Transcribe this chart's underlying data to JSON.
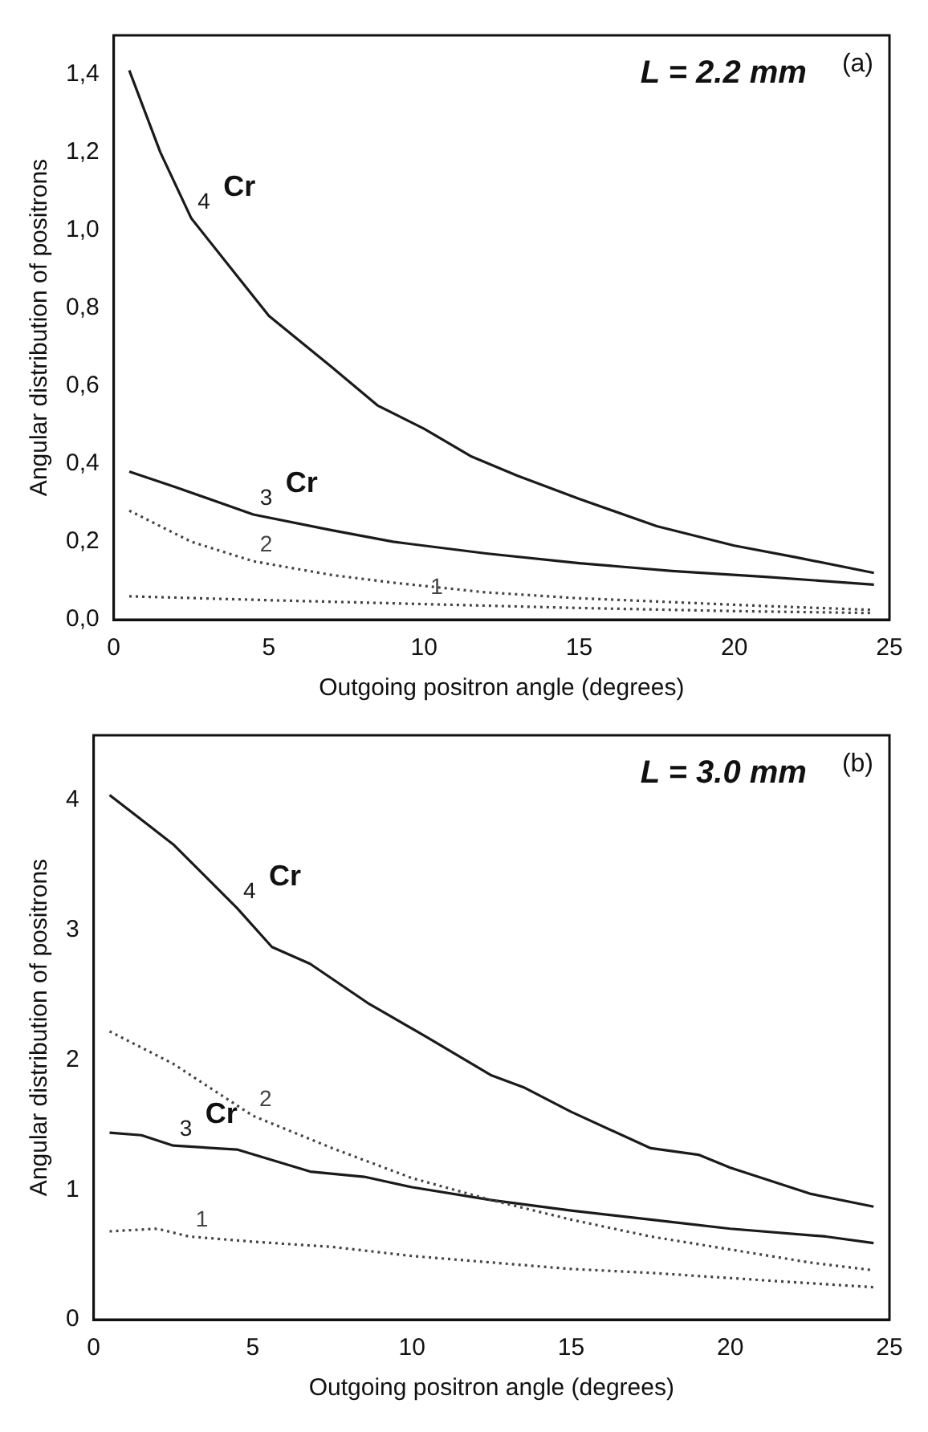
{
  "chart_data": [
    {
      "type": "line",
      "xlabel": "Outgoing positron angle (degrees)",
      "ylabel": "Angular distribution of positrons",
      "xlim": [
        0,
        25
      ],
      "xticks": [
        0,
        5,
        10,
        15,
        20,
        25
      ],
      "ylim": [
        0,
        1.5
      ],
      "yticks": [
        {
          "value": 0,
          "label": "0,0"
        },
        {
          "value": 0.2,
          "label": "0,2"
        },
        {
          "value": 0.4,
          "label": "0,4"
        },
        {
          "value": 0.6,
          "label": "0,6"
        },
        {
          "value": 0.8,
          "label": "0,8"
        },
        {
          "value": 1,
          "label": "1,0"
        },
        {
          "value": 1.2,
          "label": "1,2"
        },
        {
          "value": 1.4,
          "label": "1,4"
        }
      ],
      "grid": false,
      "legend": false,
      "marker": "none",
      "annotations": [
        "L = 2.2 mm",
        "(a)",
        "Cr",
        "Cr"
      ],
      "series": [
        {
          "name": "1",
          "color": "#444444",
          "line_style": "dotted",
          "x": [
            0.5,
            5,
            10,
            15,
            20,
            24.5
          ],
          "values": [
            0.06,
            0.05,
            0.04,
            0.03,
            0.022,
            0.017
          ]
        },
        {
          "name": "2",
          "color": "#444444",
          "line_style": "dotted",
          "x": [
            0.5,
            2.5,
            4.5,
            7,
            9,
            12,
            15,
            18,
            21,
            24.5
          ],
          "values": [
            0.28,
            0.2,
            0.15,
            0.115,
            0.095,
            0.07,
            0.055,
            0.045,
            0.035,
            0.025
          ]
        },
        {
          "name": "3",
          "color": "#1a1a1a",
          "line_style": "solid",
          "x": [
            0.5,
            2,
            4.5,
            7,
            9,
            12,
            15,
            18,
            21,
            24.5
          ],
          "values": [
            0.38,
            0.34,
            0.27,
            0.23,
            0.2,
            0.17,
            0.145,
            0.125,
            0.11,
            0.09
          ]
        },
        {
          "name": "4",
          "color": "#1a1a1a",
          "line_style": "solid",
          "x": [
            0.5,
            1.5,
            2.5,
            4,
            5,
            7,
            8.5,
            10,
            11.5,
            13,
            15,
            17.5,
            20,
            22,
            24.5
          ],
          "values": [
            1.41,
            1.2,
            1.03,
            0.88,
            0.78,
            0.65,
            0.55,
            0.49,
            0.42,
            0.37,
            0.31,
            0.24,
            0.19,
            0.16,
            0.12
          ]
        }
      ]
    },
    {
      "type": "line",
      "xlabel": "Outgoing positron angle (degrees)",
      "ylabel": "Angular distribution of positrons",
      "xlim": [
        0,
        25
      ],
      "xticks": [
        0,
        5,
        10,
        15,
        20,
        25
      ],
      "ylim": [
        0,
        4.5
      ],
      "yticks": [
        0,
        1,
        2,
        3,
        4
      ],
      "grid": false,
      "legend": false,
      "marker": "none",
      "annotations": [
        "L = 3.0 mm",
        "(b)",
        "Cr",
        "Cr"
      ],
      "series": [
        {
          "name": "1",
          "color": "#444444",
          "line_style": "dotted",
          "x": [
            0.5,
            2,
            3,
            5,
            7.5,
            10,
            12.5,
            15,
            17.5,
            20,
            22.5,
            24.5
          ],
          "values": [
            0.68,
            0.7,
            0.64,
            0.6,
            0.56,
            0.49,
            0.44,
            0.39,
            0.36,
            0.32,
            0.28,
            0.25
          ]
        },
        {
          "name": "2",
          "color": "#444444",
          "line_style": "dotted",
          "x": [
            0.5,
            2.5,
            5,
            7.5,
            10,
            12.5,
            15,
            17.5,
            20,
            22.5,
            24.5
          ],
          "values": [
            2.22,
            1.97,
            1.57,
            1.32,
            1.09,
            0.92,
            0.77,
            0.64,
            0.54,
            0.44,
            0.38
          ]
        },
        {
          "name": "3",
          "color": "#1a1a1a",
          "line_style": "solid",
          "x": [
            0.5,
            1.5,
            2.5,
            4.5,
            6.8,
            8.5,
            10,
            12.5,
            15,
            17.5,
            20,
            23,
            24.5
          ],
          "values": [
            1.44,
            1.42,
            1.34,
            1.31,
            1.14,
            1.1,
            1.02,
            0.92,
            0.84,
            0.77,
            0.7,
            0.64,
            0.59
          ]
        },
        {
          "name": "4",
          "color": "#1a1a1a",
          "line_style": "solid",
          "x": [
            0.5,
            2.5,
            4.5,
            5.6,
            6.8,
            8.6,
            10.5,
            12.5,
            13.5,
            15,
            17.5,
            19,
            20,
            22.5,
            24.5
          ],
          "values": [
            4.04,
            3.66,
            3.17,
            2.87,
            2.74,
            2.44,
            2.17,
            1.88,
            1.79,
            1.6,
            1.32,
            1.27,
            1.17,
            0.97,
            0.87
          ]
        }
      ]
    }
  ]
}
